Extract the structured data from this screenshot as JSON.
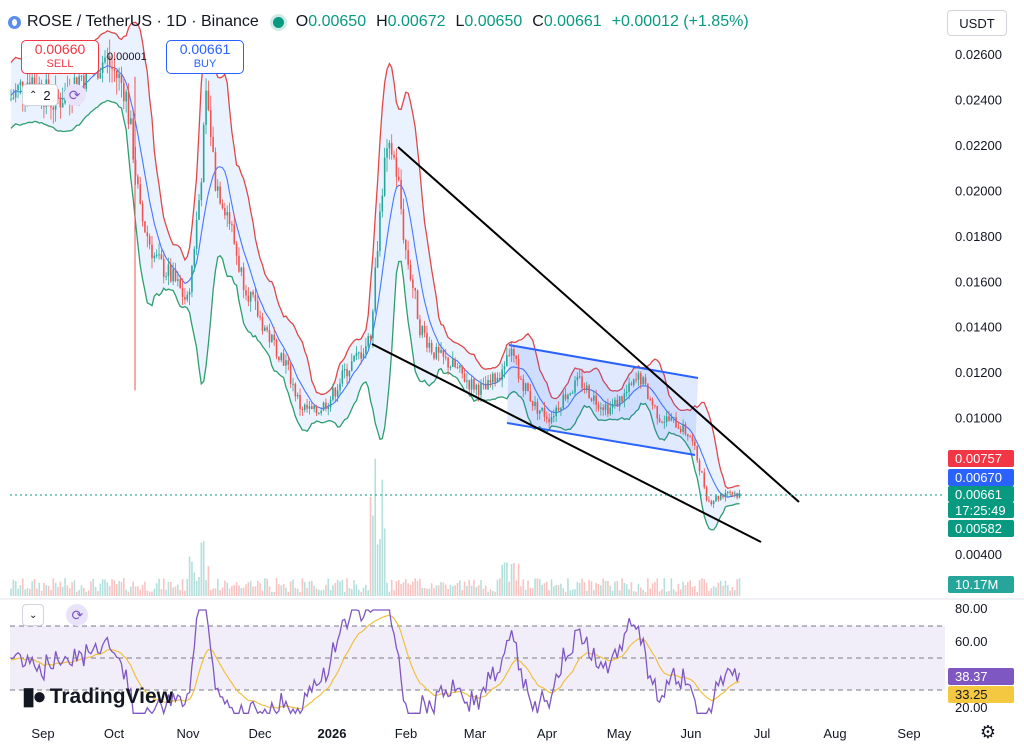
{
  "header": {
    "symbol": "ROSE / TetherUS",
    "interval": "1D",
    "exchange": "Binance",
    "title_full": "ROSE / TetherUS · 1D · Binance",
    "ohlc": [
      {
        "key": "O",
        "value": "0.00650"
      },
      {
        "key": "H",
        "value": "0.00672"
      },
      {
        "key": "L",
        "value": "0.00650"
      },
      {
        "key": "C",
        "value": "0.00661"
      }
    ],
    "change": "+0.00012 (+1.85%)"
  },
  "currency_select": "USDT",
  "trade": {
    "sell_price": "0.00660",
    "sell_label": "SELL",
    "buy_price": "0.00661",
    "buy_label": "BUY",
    "spread": "0.00001"
  },
  "indicators_count": "2",
  "price_axis": {
    "labels": [
      "0.02600",
      "0.02400",
      "0.02200",
      "0.02000",
      "0.01800",
      "0.01600",
      "0.01400",
      "0.01200",
      "0.01000",
      "0.00400"
    ]
  },
  "price_badges": [
    {
      "name": "upper-band-badge",
      "value": "0.00757",
      "color": "#f23645"
    },
    {
      "name": "basis-badge",
      "value": "0.00670",
      "color": "#2962ff"
    },
    {
      "name": "last-price-badge",
      "value": "0.00661",
      "color": "#089981"
    },
    {
      "name": "countdown-badge",
      "value": "17:25:49",
      "color": "#089981"
    },
    {
      "name": "lower-band-badge",
      "value": "0.00582",
      "color": "#089981"
    },
    {
      "name": "volume-badge",
      "value": "10.17M",
      "color": "#26a69a"
    }
  ],
  "rsi_axis": {
    "labels": [
      "80.00",
      "60.00",
      "20.00"
    ]
  },
  "rsi_badges": [
    {
      "name": "rsi-value-badge",
      "value": "38.37",
      "color": "#7e57c2"
    },
    {
      "name": "rsi-ma-badge",
      "value": "33.25",
      "color": "#f5c842"
    }
  ],
  "time_axis": {
    "labels": [
      {
        "text": "Sep",
        "bold": false
      },
      {
        "text": "Oct",
        "bold": false
      },
      {
        "text": "Nov",
        "bold": false
      },
      {
        "text": "Dec",
        "bold": false
      },
      {
        "text": "2026",
        "bold": true
      },
      {
        "text": "Feb",
        "bold": false
      },
      {
        "text": "Mar",
        "bold": false
      },
      {
        "text": "Apr",
        "bold": false
      },
      {
        "text": "May",
        "bold": false
      },
      {
        "text": "Jun",
        "bold": false
      },
      {
        "text": "Jul",
        "bold": false
      },
      {
        "text": "Aug",
        "bold": false
      },
      {
        "text": "Sep",
        "bold": false
      }
    ]
  },
  "watermark": "TradingView",
  "colors": {
    "up": "#26a69a",
    "down": "#ef5350",
    "upper_band": "#e04848",
    "lower_band": "#2e9e6c",
    "basis": "#2962ff",
    "band_fill": "#e8f0ff",
    "channel": "#2962ff",
    "rsi": "#7e57c2",
    "rsi_ma": "#f0c040"
  },
  "icons": {
    "chevron": "chevron-down-icon",
    "refresh": "refresh-icon",
    "settings": "gear-icon"
  }
}
